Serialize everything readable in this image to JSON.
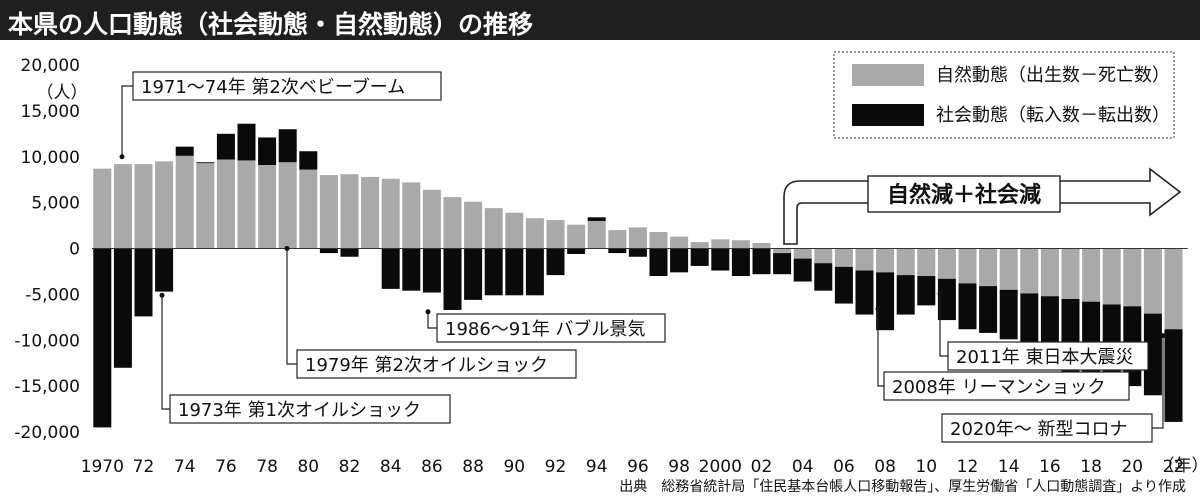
{
  "title": "本県の人口動態（社会動態・自然動態）の推移",
  "source": "出典　総務省統計局「住民基本台帳人口移動報告」、厚生労働省「人口動態調査」より作成",
  "chart_data": {
    "type": "bar",
    "stacked": true,
    "ylim": [
      -20000,
      20000
    ],
    "y_unit_label": "（人）",
    "x_unit_label": "（年）",
    "y_ticks": [
      20000,
      15000,
      10000,
      5000,
      0,
      -5000,
      -10000,
      -15000,
      -20000
    ],
    "y_tick_labels": [
      "20,000",
      "15,000",
      "10,000",
      "5,000",
      "0",
      "-5,000",
      "-10,000",
      "-15,000",
      "-20,000"
    ],
    "years": [
      1970,
      1971,
      1972,
      1973,
      1974,
      1975,
      1976,
      1977,
      1978,
      1979,
      1980,
      1981,
      1982,
      1983,
      1984,
      1985,
      1986,
      1987,
      1988,
      1989,
      1990,
      1991,
      1992,
      1993,
      1994,
      1995,
      1996,
      1997,
      1998,
      1999,
      2000,
      2001,
      2002,
      2003,
      2004,
      2005,
      2006,
      2007,
      2008,
      2009,
      2010,
      2011,
      2012,
      2013,
      2014,
      2015,
      2016,
      2017,
      2018,
      2019,
      2020,
      2021,
      2022
    ],
    "x_tick_labels": [
      "1970",
      "72",
      "74",
      "76",
      "78",
      "80",
      "82",
      "84",
      "86",
      "88",
      "90",
      "92",
      "94",
      "96",
      "98",
      "2000",
      "02",
      "04",
      "06",
      "08",
      "10",
      "12",
      "14",
      "16",
      "18",
      "20",
      "22"
    ],
    "x_tick_years": [
      1970,
      1972,
      1974,
      1976,
      1978,
      1980,
      1982,
      1984,
      1986,
      1988,
      1990,
      1992,
      1994,
      1996,
      1998,
      2000,
      2002,
      2004,
      2006,
      2008,
      2010,
      2012,
      2014,
      2016,
      2018,
      2020,
      2022
    ],
    "legend_position": "top-right",
    "series": [
      {
        "name": "自然動態（出生数－死亡数）",
        "color": "#a9a9a9",
        "values": [
          8700,
          9200,
          9200,
          9500,
          10100,
          9300,
          9700,
          9600,
          9100,
          9400,
          8600,
          8000,
          8100,
          7800,
          7600,
          7200,
          6400,
          5600,
          5100,
          4400,
          3900,
          3300,
          3100,
          2600,
          3000,
          2000,
          2300,
          1800,
          1300,
          700,
          1000,
          900,
          600,
          -500,
          -1100,
          -1600,
          -2000,
          -2400,
          -2600,
          -2900,
          -3000,
          -3300,
          -3800,
          -4100,
          -4500,
          -4900,
          -5200,
          -5500,
          -5800,
          -6100,
          -6300,
          -7100,
          -8800
        ]
      },
      {
        "name": "社会動態（転入数－転出数）",
        "color": "#0a0a0a",
        "values": [
          -19500,
          -13000,
          -7400,
          -4700,
          1000,
          100,
          2800,
          4000,
          3000,
          3600,
          2000,
          -500,
          -900,
          0,
          -4400,
          -4600,
          -4800,
          -6700,
          -5600,
          -5100,
          -5100,
          -5100,
          -2900,
          -600,
          400,
          -500,
          -900,
          -3000,
          -2600,
          -1900,
          -2400,
          -3000,
          -2800,
          -2300,
          -2500,
          -3000,
          -4000,
          -4800,
          -6300,
          -4300,
          -3200,
          -4500,
          -5000,
          -5100,
          -5400,
          -7100,
          -8000,
          -8200,
          -8300,
          -8600,
          -8700,
          -8900,
          -10100
        ]
      }
    ],
    "headline_arrow": "自然減＋社会減",
    "annotations": [
      "1971〜74年 第2次ベビーブーム",
      "1973年 第1次オイルショック",
      "1979年 第2次オイルショック",
      "1986〜91年 バブル景気",
      "2008年 リーマンショック",
      "2011年 東日本大震災",
      "2020年〜 新型コロナ"
    ]
  }
}
